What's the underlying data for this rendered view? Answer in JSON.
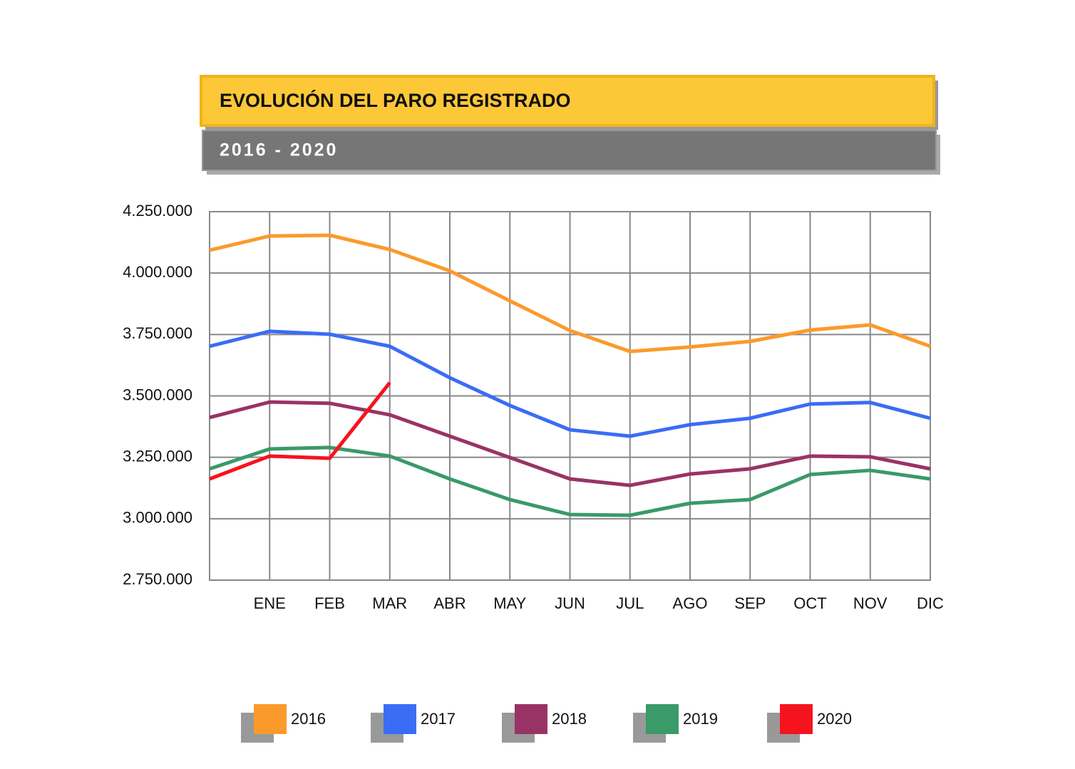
{
  "chart_data": {
    "type": "line",
    "title": "EVOLUCIÓN DEL PARO REGISTRADO",
    "subtitle": "2016 - 2020",
    "categories": [
      null,
      "ENE",
      "FEB",
      "MAR",
      "ABR",
      "MAY",
      "JUN",
      "JUL",
      "AGO",
      "SEP",
      "OCT",
      "NOV",
      "DIC"
    ],
    "ylim": [
      2750000,
      4250000
    ],
    "yticks": [
      {
        "value": 2750000,
        "label": "2.750.000"
      },
      {
        "value": 3000000,
        "label": "3.000.000"
      },
      {
        "value": 3250000,
        "label": "3.250.000"
      },
      {
        "value": 3500000,
        "label": "3.500.000"
      },
      {
        "value": 3750000,
        "label": "3.750.000"
      },
      {
        "value": 4000000,
        "label": "4.000.000"
      },
      {
        "value": 4250000,
        "label": "4.250.000"
      }
    ],
    "grid": true,
    "series": [
      {
        "name": "2016",
        "color": "#fb9a2b",
        "values": [
          4093000,
          4151000,
          4154000,
          4096000,
          4009000,
          3887000,
          3766000,
          3681000,
          3699000,
          3722000,
          3768000,
          3789000,
          3702000
        ]
      },
      {
        "name": "2017",
        "color": "#3a6cf5",
        "values": [
          3702000,
          3763000,
          3751000,
          3702000,
          3574000,
          3461000,
          3362000,
          3336000,
          3383000,
          3409000,
          3467000,
          3473000,
          3409000
        ]
      },
      {
        "name": "2018",
        "color": "#993366",
        "values": [
          3412000,
          3475000,
          3470000,
          3423000,
          3336000,
          3249000,
          3162000,
          3136000,
          3182000,
          3203000,
          3255000,
          3252000,
          3203000
        ]
      },
      {
        "name": "2019",
        "color": "#3a9a68",
        "values": [
          3203000,
          3284000,
          3290000,
          3255000,
          3162000,
          3078000,
          3017000,
          3014000,
          3063000,
          3078000,
          3180000,
          3197000,
          3162000
        ]
      },
      {
        "name": "2020",
        "color": "#f5141e",
        "values": [
          3162000,
          3255000,
          3246000,
          3554000,
          null,
          null,
          null,
          null,
          null,
          null,
          null,
          null,
          null
        ]
      }
    ]
  }
}
